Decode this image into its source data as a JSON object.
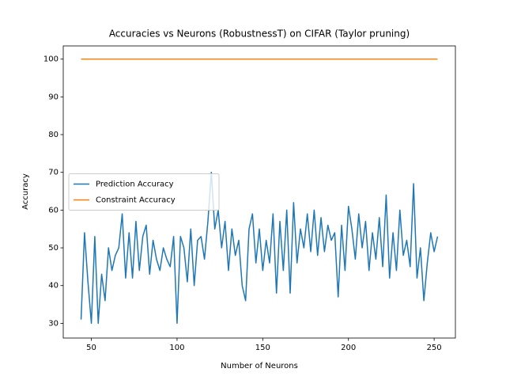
{
  "chart_data": {
    "type": "line",
    "title": "Accuracies vs Neurons (RobustnessT) on CIFAR (Taylor pruning)",
    "x_label": "Number of Neurons",
    "y_label": "Accuracy",
    "series": [
      {
        "name": "Prediction Accuracy",
        "color": "#1f77b4",
        "x": [
          44,
          46,
          48,
          50,
          52,
          54,
          56,
          58,
          60,
          62,
          64,
          66,
          68,
          70,
          72,
          74,
          76,
          78,
          80,
          82,
          84,
          86,
          88,
          90,
          92,
          94,
          96,
          98,
          100,
          102,
          104,
          106,
          108,
          110,
          112,
          114,
          116,
          118,
          120,
          122,
          124,
          126,
          128,
          130,
          132,
          134,
          136,
          138,
          140,
          142,
          144,
          146,
          148,
          150,
          152,
          154,
          156,
          158,
          160,
          162,
          164,
          166,
          168,
          170,
          172,
          174,
          176,
          178,
          180,
          182,
          184,
          186,
          188,
          190,
          192,
          194,
          196,
          198,
          200,
          202,
          204,
          206,
          208,
          210,
          212,
          214,
          216,
          218,
          220,
          222,
          224,
          226,
          228,
          230,
          232,
          234,
          236,
          238,
          240,
          242,
          244,
          246,
          248,
          250,
          252
        ],
        "values": [
          31,
          54,
          41,
          30,
          53,
          30,
          43,
          36,
          50,
          44,
          48,
          50,
          59,
          42,
          54,
          42,
          57,
          44,
          53,
          56,
          43,
          52,
          47,
          44,
          50,
          47,
          45,
          53,
          30,
          53,
          50,
          41,
          55,
          40,
          52,
          53,
          47,
          57,
          70,
          55,
          60,
          50,
          57,
          44,
          55,
          48,
          52,
          40,
          36,
          55,
          59,
          46,
          55,
          44,
          52,
          46,
          59,
          38,
          57,
          44,
          60,
          38,
          62,
          46,
          55,
          50,
          59,
          49,
          60,
          48,
          58,
          49,
          56,
          52,
          54,
          37,
          56,
          44,
          61,
          55,
          47,
          59,
          50,
          57,
          44,
          54,
          47,
          58,
          45,
          64,
          42,
          54,
          44,
          60,
          48,
          52,
          45,
          67,
          42,
          50,
          36,
          46,
          54,
          49,
          53
        ]
      },
      {
        "name": "Constraint Accuracy",
        "color": "#ff7f0e",
        "x": [
          44,
          252
        ],
        "values": [
          100,
          100
        ]
      }
    ],
    "xlim": [
      33.6,
      262.4
    ],
    "ylim": [
      26.1,
      103.5
    ],
    "xticks": [
      50,
      100,
      150,
      200,
      250
    ],
    "yticks": [
      30,
      40,
      50,
      60,
      70,
      80,
      90,
      100
    ],
    "legend": "center left",
    "grid": false
  }
}
